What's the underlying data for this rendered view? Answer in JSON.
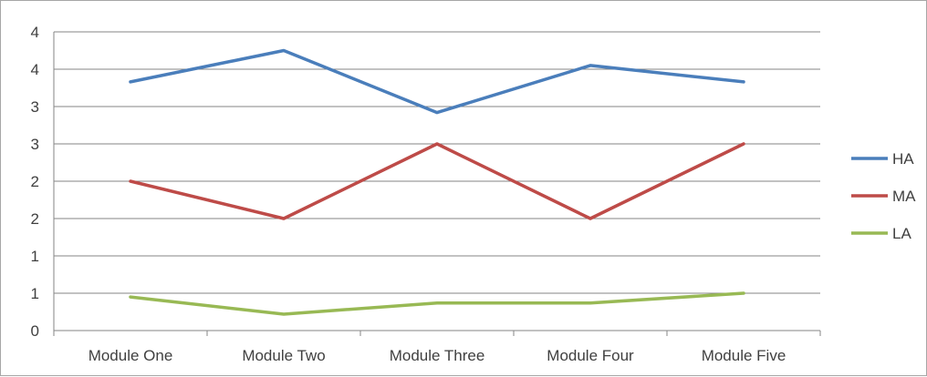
{
  "chart_data": {
    "type": "line",
    "categories": [
      "Module One",
      "Module Two",
      "Module Three",
      "Module Four",
      "Module Five"
    ],
    "y_tick_labels": [
      "0",
      "1",
      "1",
      "2",
      "2",
      "3",
      "3",
      "4",
      "4"
    ],
    "ylim": [
      0,
      4
    ],
    "grid": true,
    "legend_position": "right",
    "series": [
      {
        "name": "HA",
        "color": "#4a7ebb",
        "values": [
          3.33,
          3.75,
          2.92,
          3.55,
          3.33
        ]
      },
      {
        "name": "MA",
        "color": "#be4b48",
        "values": [
          2.0,
          1.5,
          2.5,
          1.5,
          2.5
        ]
      },
      {
        "name": "LA",
        "color": "#98b954",
        "values": [
          0.45,
          0.22,
          0.37,
          0.37,
          0.5
        ]
      }
    ]
  }
}
